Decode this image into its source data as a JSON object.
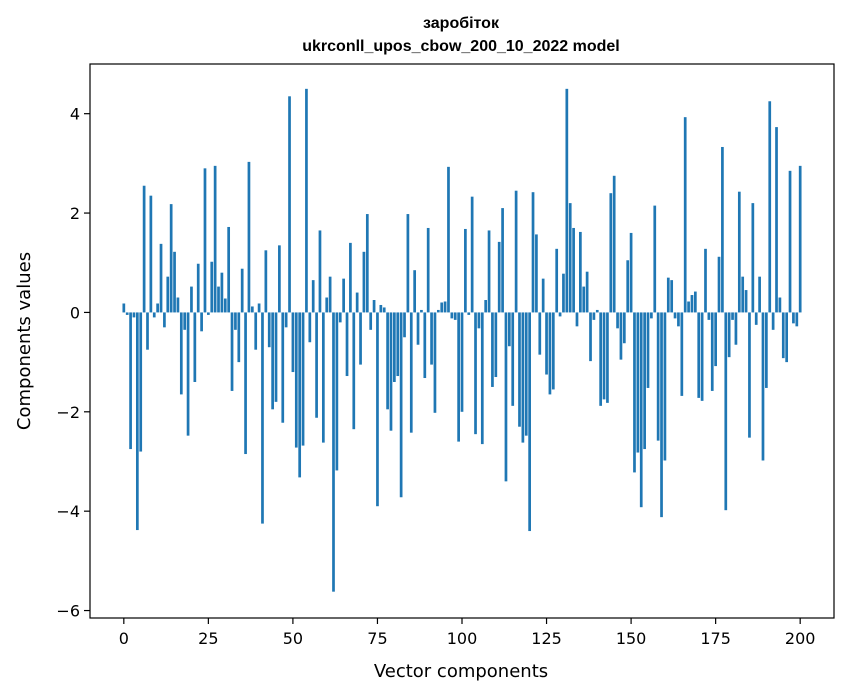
{
  "chart_data": {
    "type": "bar",
    "title_line1": "заробіток",
    "title_line2": "ukrconll_upos_cbow_200_10_2022 model",
    "xlabel": "Vector components",
    "ylabel": "Components values",
    "xlim": [
      -10,
      210
    ],
    "ylim": [
      -6.15,
      5.0
    ],
    "xticks": [
      0,
      25,
      50,
      75,
      100,
      125,
      150,
      175,
      200
    ],
    "yticks": [
      -6,
      -4,
      -2,
      0,
      2,
      4
    ],
    "bar_color": "#1f77b4",
    "values": [
      0.18,
      -0.05,
      -2.75,
      -0.1,
      -4.38,
      -2.8,
      2.55,
      -0.75,
      2.35,
      -0.1,
      0.18,
      1.38,
      -0.3,
      0.72,
      2.18,
      1.22,
      0.3,
      -1.65,
      -0.35,
      -2.48,
      0.52,
      -1.4,
      0.98,
      -0.38,
      2.9,
      -0.05,
      1.02,
      2.95,
      0.52,
      0.8,
      0.28,
      1.72,
      -1.58,
      -0.35,
      -1.0,
      0.88,
      -2.85,
      3.03,
      0.12,
      -0.75,
      0.18,
      -4.25,
      1.25,
      -0.7,
      -1.95,
      -1.8,
      1.35,
      -2.22,
      -0.3,
      4.35,
      -1.2,
      -2.72,
      -3.32,
      -2.68,
      4.5,
      -0.6,
      0.65,
      -2.12,
      1.65,
      -2.62,
      0.3,
      0.72,
      -5.62,
      -3.18,
      -0.2,
      0.68,
      -1.28,
      1.4,
      -2.35,
      0.4,
      -1.05,
      1.22,
      1.98,
      -0.35,
      0.25,
      -3.9,
      0.15,
      0.1,
      -1.95,
      -2.38,
      -1.4,
      -1.28,
      -3.72,
      -0.5,
      1.98,
      -2.42,
      0.85,
      -0.65,
      0.05,
      -1.32,
      1.7,
      -1.05,
      -2.02,
      0.05,
      0.2,
      0.22,
      2.93,
      -0.12,
      -0.15,
      -2.6,
      -2.0,
      1.68,
      -0.05,
      2.33,
      -2.45,
      -0.32,
      -2.65,
      0.25,
      1.65,
      -1.5,
      -1.3,
      1.42,
      2.1,
      -3.4,
      -0.68,
      -1.88,
      2.45,
      -2.3,
      -2.62,
      -2.48,
      -4.4,
      2.42,
      1.57,
      -0.85,
      0.68,
      -1.25,
      -1.65,
      -1.55,
      1.28,
      -0.08,
      0.78,
      4.5,
      2.2,
      1.7,
      -0.28,
      1.62,
      0.52,
      0.82,
      -0.98,
      -0.15,
      0.05,
      -1.88,
      -1.75,
      -1.82,
      2.4,
      2.75,
      -0.32,
      -0.95,
      -0.62,
      1.05,
      1.6,
      -3.22,
      -2.82,
      -3.92,
      -2.75,
      -1.52,
      -0.12,
      2.15,
      -2.58,
      -4.12,
      -2.98,
      0.7,
      0.65,
      -0.12,
      -0.28,
      -1.68,
      3.93,
      0.22,
      0.35,
      0.42,
      -1.72,
      -1.78,
      1.28,
      -0.15,
      -1.58,
      -1.08,
      1.12,
      3.33,
      -3.98,
      -0.9,
      -0.15,
      -0.65,
      2.43,
      0.72,
      0.45,
      -2.52,
      2.2,
      -0.25,
      0.72,
      -2.98,
      -1.52,
      4.25,
      -0.35,
      3.73,
      0.3,
      -0.92,
      -1.0,
      2.85,
      -0.22,
      -0.28,
      2.95
    ]
  }
}
